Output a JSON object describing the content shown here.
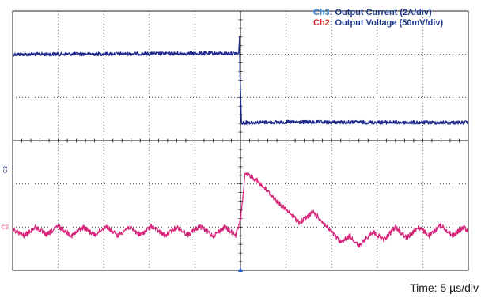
{
  "chart_data": {
    "type": "line",
    "title": "",
    "legend": [
      {
        "channel": "Ch3",
        "label": ": Output Current (2A/div)",
        "color": "#2a7fd0"
      },
      {
        "channel": "Ch2",
        "label": ": Output Voltage (50mV/div)",
        "color": "#e0242a"
      }
    ],
    "channel_markers": {
      "ch3": "C3",
      "ch2": "C2"
    },
    "time_label": "Time: 5 µs/div",
    "x_divisions": 10,
    "y_divisions": 6,
    "series": [
      {
        "name": "Output Current",
        "color": "#1e2a8c",
        "points_div": [
          [
            0.0,
            1.0
          ],
          [
            4.15,
            0.98
          ],
          [
            4.96,
            0.98
          ],
          [
            4.98,
            0.6
          ],
          [
            4.99,
            1.4
          ],
          [
            5.02,
            2.58
          ],
          [
            6.0,
            2.57
          ],
          [
            10.0,
            2.58
          ]
        ]
      },
      {
        "name": "Output Voltage",
        "color": "#d8237a",
        "points_div": [
          [
            0.0,
            5.05
          ],
          [
            0.25,
            5.2
          ],
          [
            0.5,
            5.0
          ],
          [
            0.75,
            5.18
          ],
          [
            1.0,
            4.98
          ],
          [
            1.3,
            5.2
          ],
          [
            1.55,
            5.0
          ],
          [
            1.8,
            5.18
          ],
          [
            2.05,
            4.98
          ],
          [
            2.3,
            5.2
          ],
          [
            2.55,
            5.0
          ],
          [
            2.8,
            5.18
          ],
          [
            3.05,
            4.98
          ],
          [
            3.35,
            5.2
          ],
          [
            3.6,
            5.0
          ],
          [
            3.85,
            5.18
          ],
          [
            4.1,
            4.98
          ],
          [
            4.4,
            5.2
          ],
          [
            4.65,
            5.0
          ],
          [
            4.9,
            5.18
          ],
          [
            5.0,
            4.85
          ],
          [
            5.1,
            3.8
          ],
          [
            5.2,
            3.8
          ],
          [
            5.4,
            3.95
          ],
          [
            5.8,
            4.4
          ],
          [
            6.3,
            4.9
          ],
          [
            6.6,
            4.65
          ],
          [
            6.9,
            5.0
          ],
          [
            7.2,
            5.35
          ],
          [
            7.4,
            5.2
          ],
          [
            7.6,
            5.45
          ],
          [
            7.9,
            5.1
          ],
          [
            8.15,
            5.3
          ],
          [
            8.4,
            5.0
          ],
          [
            8.65,
            5.25
          ],
          [
            8.9,
            5.0
          ],
          [
            9.15,
            5.2
          ],
          [
            9.4,
            4.95
          ],
          [
            9.65,
            5.2
          ],
          [
            9.9,
            5.0
          ],
          [
            10.0,
            5.1
          ]
        ]
      }
    ]
  }
}
